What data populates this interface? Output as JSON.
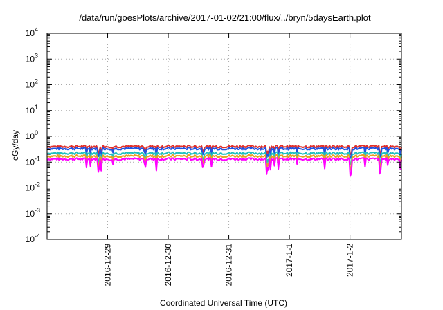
{
  "chart_data": {
    "type": "line",
    "title": "/data/run/goesPlots/archive/2017-01-02/21:00/flux/../bryn/5daysEarth.plot",
    "xlabel": "Coordinated Universal Time (UTC)",
    "ylabel": "cGy/day",
    "yscale": "log",
    "ylim": [
      0.0001,
      10000
    ],
    "xlim": [
      0,
      5.85
    ],
    "grid": true,
    "y_ticks": [
      {
        "base": "10",
        "exp": "-4",
        "value": 0.0001
      },
      {
        "base": "10",
        "exp": "-3",
        "value": 0.001
      },
      {
        "base": "10",
        "exp": "-2",
        "value": 0.01
      },
      {
        "base": "10",
        "exp": "-1",
        "value": 0.1
      },
      {
        "base": "10",
        "exp": "0",
        "value": 1
      },
      {
        "base": "10",
        "exp": "1",
        "value": 10
      },
      {
        "base": "10",
        "exp": "2",
        "value": 100
      },
      {
        "base": "10",
        "exp": "3",
        "value": 1000
      },
      {
        "base": "10",
        "exp": "4",
        "value": 10000
      }
    ],
    "x_ticks": [
      {
        "label": "2016-12-29",
        "value": 1
      },
      {
        "label": "2016-12-30",
        "value": 2
      },
      {
        "label": "2016-12-31",
        "value": 3
      },
      {
        "label": "2017-1-1",
        "value": 4
      },
      {
        "label": "2017-1-2",
        "value": 5
      }
    ],
    "series": [
      {
        "color": "#e0302a",
        "base": 0.4
      },
      {
        "color": "#2050e0",
        "base": 0.33
      },
      {
        "color": "#20c0c0",
        "base": 0.22
      },
      {
        "color": "#e8a020",
        "base": 0.17
      },
      {
        "color": "#ff00ff",
        "base": 0.13
      }
    ]
  }
}
